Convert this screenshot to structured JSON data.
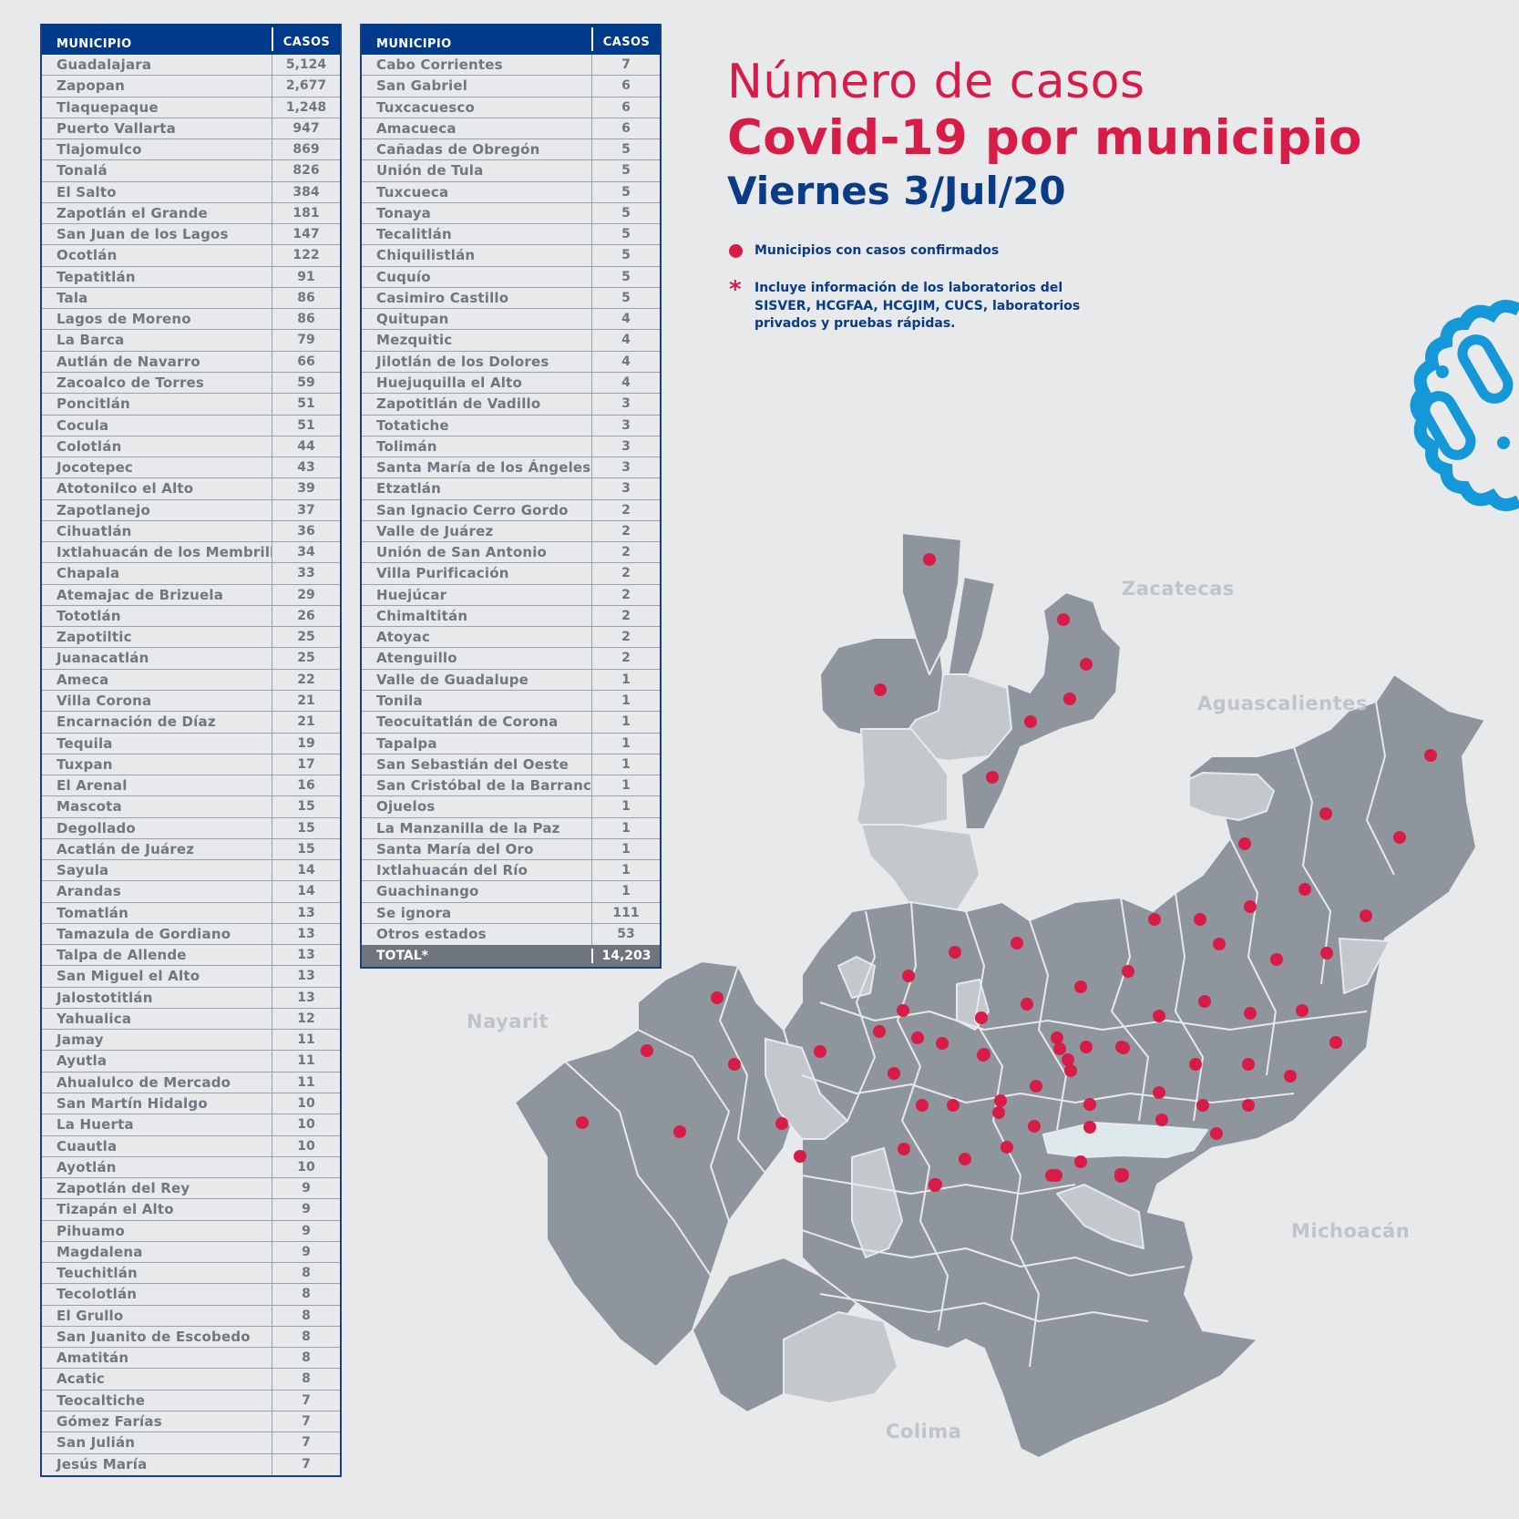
{
  "table_left": {
    "header": {
      "municipio": "MUNICIPIO",
      "casos": "CASOS"
    },
    "rows": [
      {
        "name": "Guadalajara",
        "cases": "5,124"
      },
      {
        "name": "Zapopan",
        "cases": "2,677"
      },
      {
        "name": "Tlaquepaque",
        "cases": "1,248"
      },
      {
        "name": "Puerto Vallarta",
        "cases": "947"
      },
      {
        "name": "Tlajomulco",
        "cases": "869"
      },
      {
        "name": "Tonalá",
        "cases": "826"
      },
      {
        "name": "El Salto",
        "cases": "384"
      },
      {
        "name": "Zapotlán el Grande",
        "cases": "181"
      },
      {
        "name": "San Juan de los Lagos",
        "cases": "147"
      },
      {
        "name": "Ocotlán",
        "cases": "122"
      },
      {
        "name": "Tepatitlán",
        "cases": "91"
      },
      {
        "name": "Tala",
        "cases": "86"
      },
      {
        "name": "Lagos de Moreno",
        "cases": "86"
      },
      {
        "name": "La Barca",
        "cases": "79"
      },
      {
        "name": "Autlán de Navarro",
        "cases": "66"
      },
      {
        "name": "Zacoalco de Torres",
        "cases": "59"
      },
      {
        "name": "Poncitlán",
        "cases": "51"
      },
      {
        "name": "Cocula",
        "cases": "51"
      },
      {
        "name": "Colotlán",
        "cases": "44"
      },
      {
        "name": "Jocotepec",
        "cases": "43"
      },
      {
        "name": "Atotonilco el Alto",
        "cases": "39"
      },
      {
        "name": "Zapotlanejo",
        "cases": "37"
      },
      {
        "name": "Cihuatlán",
        "cases": "36"
      },
      {
        "name": "Ixtlahuacán de los Membrillos",
        "cases": "34"
      },
      {
        "name": "Chapala",
        "cases": "33"
      },
      {
        "name": "Atemajac de Brizuela",
        "cases": "29"
      },
      {
        "name": "Tototlán",
        "cases": "26"
      },
      {
        "name": "Zapotiltic",
        "cases": "25"
      },
      {
        "name": "Juanacatlán",
        "cases": "25"
      },
      {
        "name": "Ameca",
        "cases": "22"
      },
      {
        "name": "Villa Corona",
        "cases": "21"
      },
      {
        "name": "Encarnación de Díaz",
        "cases": "21"
      },
      {
        "name": "Tequila",
        "cases": "19"
      },
      {
        "name": "Tuxpan",
        "cases": "17"
      },
      {
        "name": "El Arenal",
        "cases": "16"
      },
      {
        "name": "Mascota",
        "cases": "15"
      },
      {
        "name": "Degollado",
        "cases": "15"
      },
      {
        "name": "Acatlán de Juárez",
        "cases": "15"
      },
      {
        "name": "Sayula",
        "cases": "14"
      },
      {
        "name": "Arandas",
        "cases": "14"
      },
      {
        "name": "Tomatlán",
        "cases": "13"
      },
      {
        "name": "Tamazula de Gordiano",
        "cases": "13"
      },
      {
        "name": "Talpa de Allende",
        "cases": "13"
      },
      {
        "name": "San Miguel el Alto",
        "cases": "13"
      },
      {
        "name": "Jalostotitlán",
        "cases": "13"
      },
      {
        "name": "Yahualica",
        "cases": "12"
      },
      {
        "name": "Jamay",
        "cases": "11"
      },
      {
        "name": "Ayutla",
        "cases": "11"
      },
      {
        "name": "Ahualulco de Mercado",
        "cases": "11"
      },
      {
        "name": "San Martín Hidalgo",
        "cases": "10"
      },
      {
        "name": "La Huerta",
        "cases": "10"
      },
      {
        "name": "Cuautla",
        "cases": "10"
      },
      {
        "name": "Ayotlán",
        "cases": "10"
      },
      {
        "name": "Zapotlán del Rey",
        "cases": "9"
      },
      {
        "name": "Tizapán el Alto",
        "cases": "9"
      },
      {
        "name": "Pihuamo",
        "cases": "9"
      },
      {
        "name": "Magdalena",
        "cases": "9"
      },
      {
        "name": "Teuchitlán",
        "cases": "8"
      },
      {
        "name": "Tecolotlán",
        "cases": "8"
      },
      {
        "name": "El Grullo",
        "cases": "8"
      },
      {
        "name": "San Juanito de Escobedo",
        "cases": "8"
      },
      {
        "name": "Amatitán",
        "cases": "8"
      },
      {
        "name": "Acatic",
        "cases": "8"
      },
      {
        "name": "Teocaltiche",
        "cases": "7"
      },
      {
        "name": "Gómez Farías",
        "cases": "7"
      },
      {
        "name": "San Julián",
        "cases": "7"
      },
      {
        "name": "Jesús María",
        "cases": "7"
      }
    ]
  },
  "table_right": {
    "header": {
      "municipio": "MUNICIPIO",
      "casos": "CASOS"
    },
    "rows": [
      {
        "name": "Cabo Corrientes",
        "cases": "7"
      },
      {
        "name": "San Gabriel",
        "cases": "6"
      },
      {
        "name": "Tuxcacuesco",
        "cases": "6"
      },
      {
        "name": "Amacueca",
        "cases": "6"
      },
      {
        "name": "Cañadas de Obregón",
        "cases": "5"
      },
      {
        "name": "Unión de Tula",
        "cases": "5"
      },
      {
        "name": "Tuxcueca",
        "cases": "5"
      },
      {
        "name": "Tonaya",
        "cases": "5"
      },
      {
        "name": "Tecalitlán",
        "cases": "5"
      },
      {
        "name": "Chiquilistlán",
        "cases": "5"
      },
      {
        "name": "Cuquío",
        "cases": "5"
      },
      {
        "name": "Casimiro Castillo",
        "cases": "5"
      },
      {
        "name": "Quitupan",
        "cases": "4"
      },
      {
        "name": "Mezquitic",
        "cases": "4"
      },
      {
        "name": "Jilotlán de los Dolores",
        "cases": "4"
      },
      {
        "name": "Huejuquilla el Alto",
        "cases": "4"
      },
      {
        "name": "Zapotitlán de Vadillo",
        "cases": "3"
      },
      {
        "name": "Totatiche",
        "cases": "3"
      },
      {
        "name": "Tolimán",
        "cases": "3"
      },
      {
        "name": "Santa María de los Ángeles",
        "cases": "3"
      },
      {
        "name": "Etzatlán",
        "cases": "3"
      },
      {
        "name": "San Ignacio Cerro Gordo",
        "cases": "2"
      },
      {
        "name": "Valle de Juárez",
        "cases": "2"
      },
      {
        "name": "Unión de San Antonio",
        "cases": "2"
      },
      {
        "name": "Villa Purificación",
        "cases": "2"
      },
      {
        "name": "Huejúcar",
        "cases": "2"
      },
      {
        "name": "Chimaltitán",
        "cases": "2"
      },
      {
        "name": "Atoyac",
        "cases": "2"
      },
      {
        "name": "Atenguillo",
        "cases": "2"
      },
      {
        "name": "Valle de Guadalupe",
        "cases": "1"
      },
      {
        "name": "Tonila",
        "cases": "1"
      },
      {
        "name": "Teocuitatlán de Corona",
        "cases": "1"
      },
      {
        "name": "Tapalpa",
        "cases": "1"
      },
      {
        "name": "San Sebastián del Oeste",
        "cases": "1"
      },
      {
        "name": "San Cristóbal de la Barranca",
        "cases": "1"
      },
      {
        "name": "Ojuelos",
        "cases": "1"
      },
      {
        "name": "La Manzanilla de la Paz",
        "cases": "1"
      },
      {
        "name": "Santa María del Oro",
        "cases": "1"
      },
      {
        "name": "Ixtlahuacán del Río",
        "cases": "1"
      },
      {
        "name": "Guachinango",
        "cases": "1"
      },
      {
        "name": "Se ignora",
        "cases": "111"
      },
      {
        "name": "Otros estados",
        "cases": "53"
      }
    ],
    "total": {
      "label": "TOTAL*",
      "value": "14,203"
    }
  },
  "title": {
    "line1": "Número de casos",
    "line2": "Covid-19 por municipio",
    "line3": "Viernes 3/Jul/20"
  },
  "legend": {
    "dot_label": "Municipios con casos confirmados",
    "star_symbol": "*",
    "note": "Incluye información de los laboratorios del SISVER, HCGFAA, HCGJIM, CUCS, laboratorios privados y pruebas rápidas."
  },
  "map_labels": {
    "zacatecas": "Zacatecas",
    "aguascalientes": "Aguascalientes",
    "nayarit": "Nayarit",
    "michoacan": "Michoacán",
    "colima": "Colima"
  },
  "colors": {
    "title_red": "#d61c47",
    "title_blue": "#0a3b86",
    "header_blue": "#003a8b",
    "map_dark": "#8f959d",
    "map_light": "#c4c8cc",
    "lake": "#dde8ea",
    "virus_blue": "#1598d8"
  },
  "icons": {
    "virus": "virus-icon",
    "case_marker": "red-dot"
  }
}
